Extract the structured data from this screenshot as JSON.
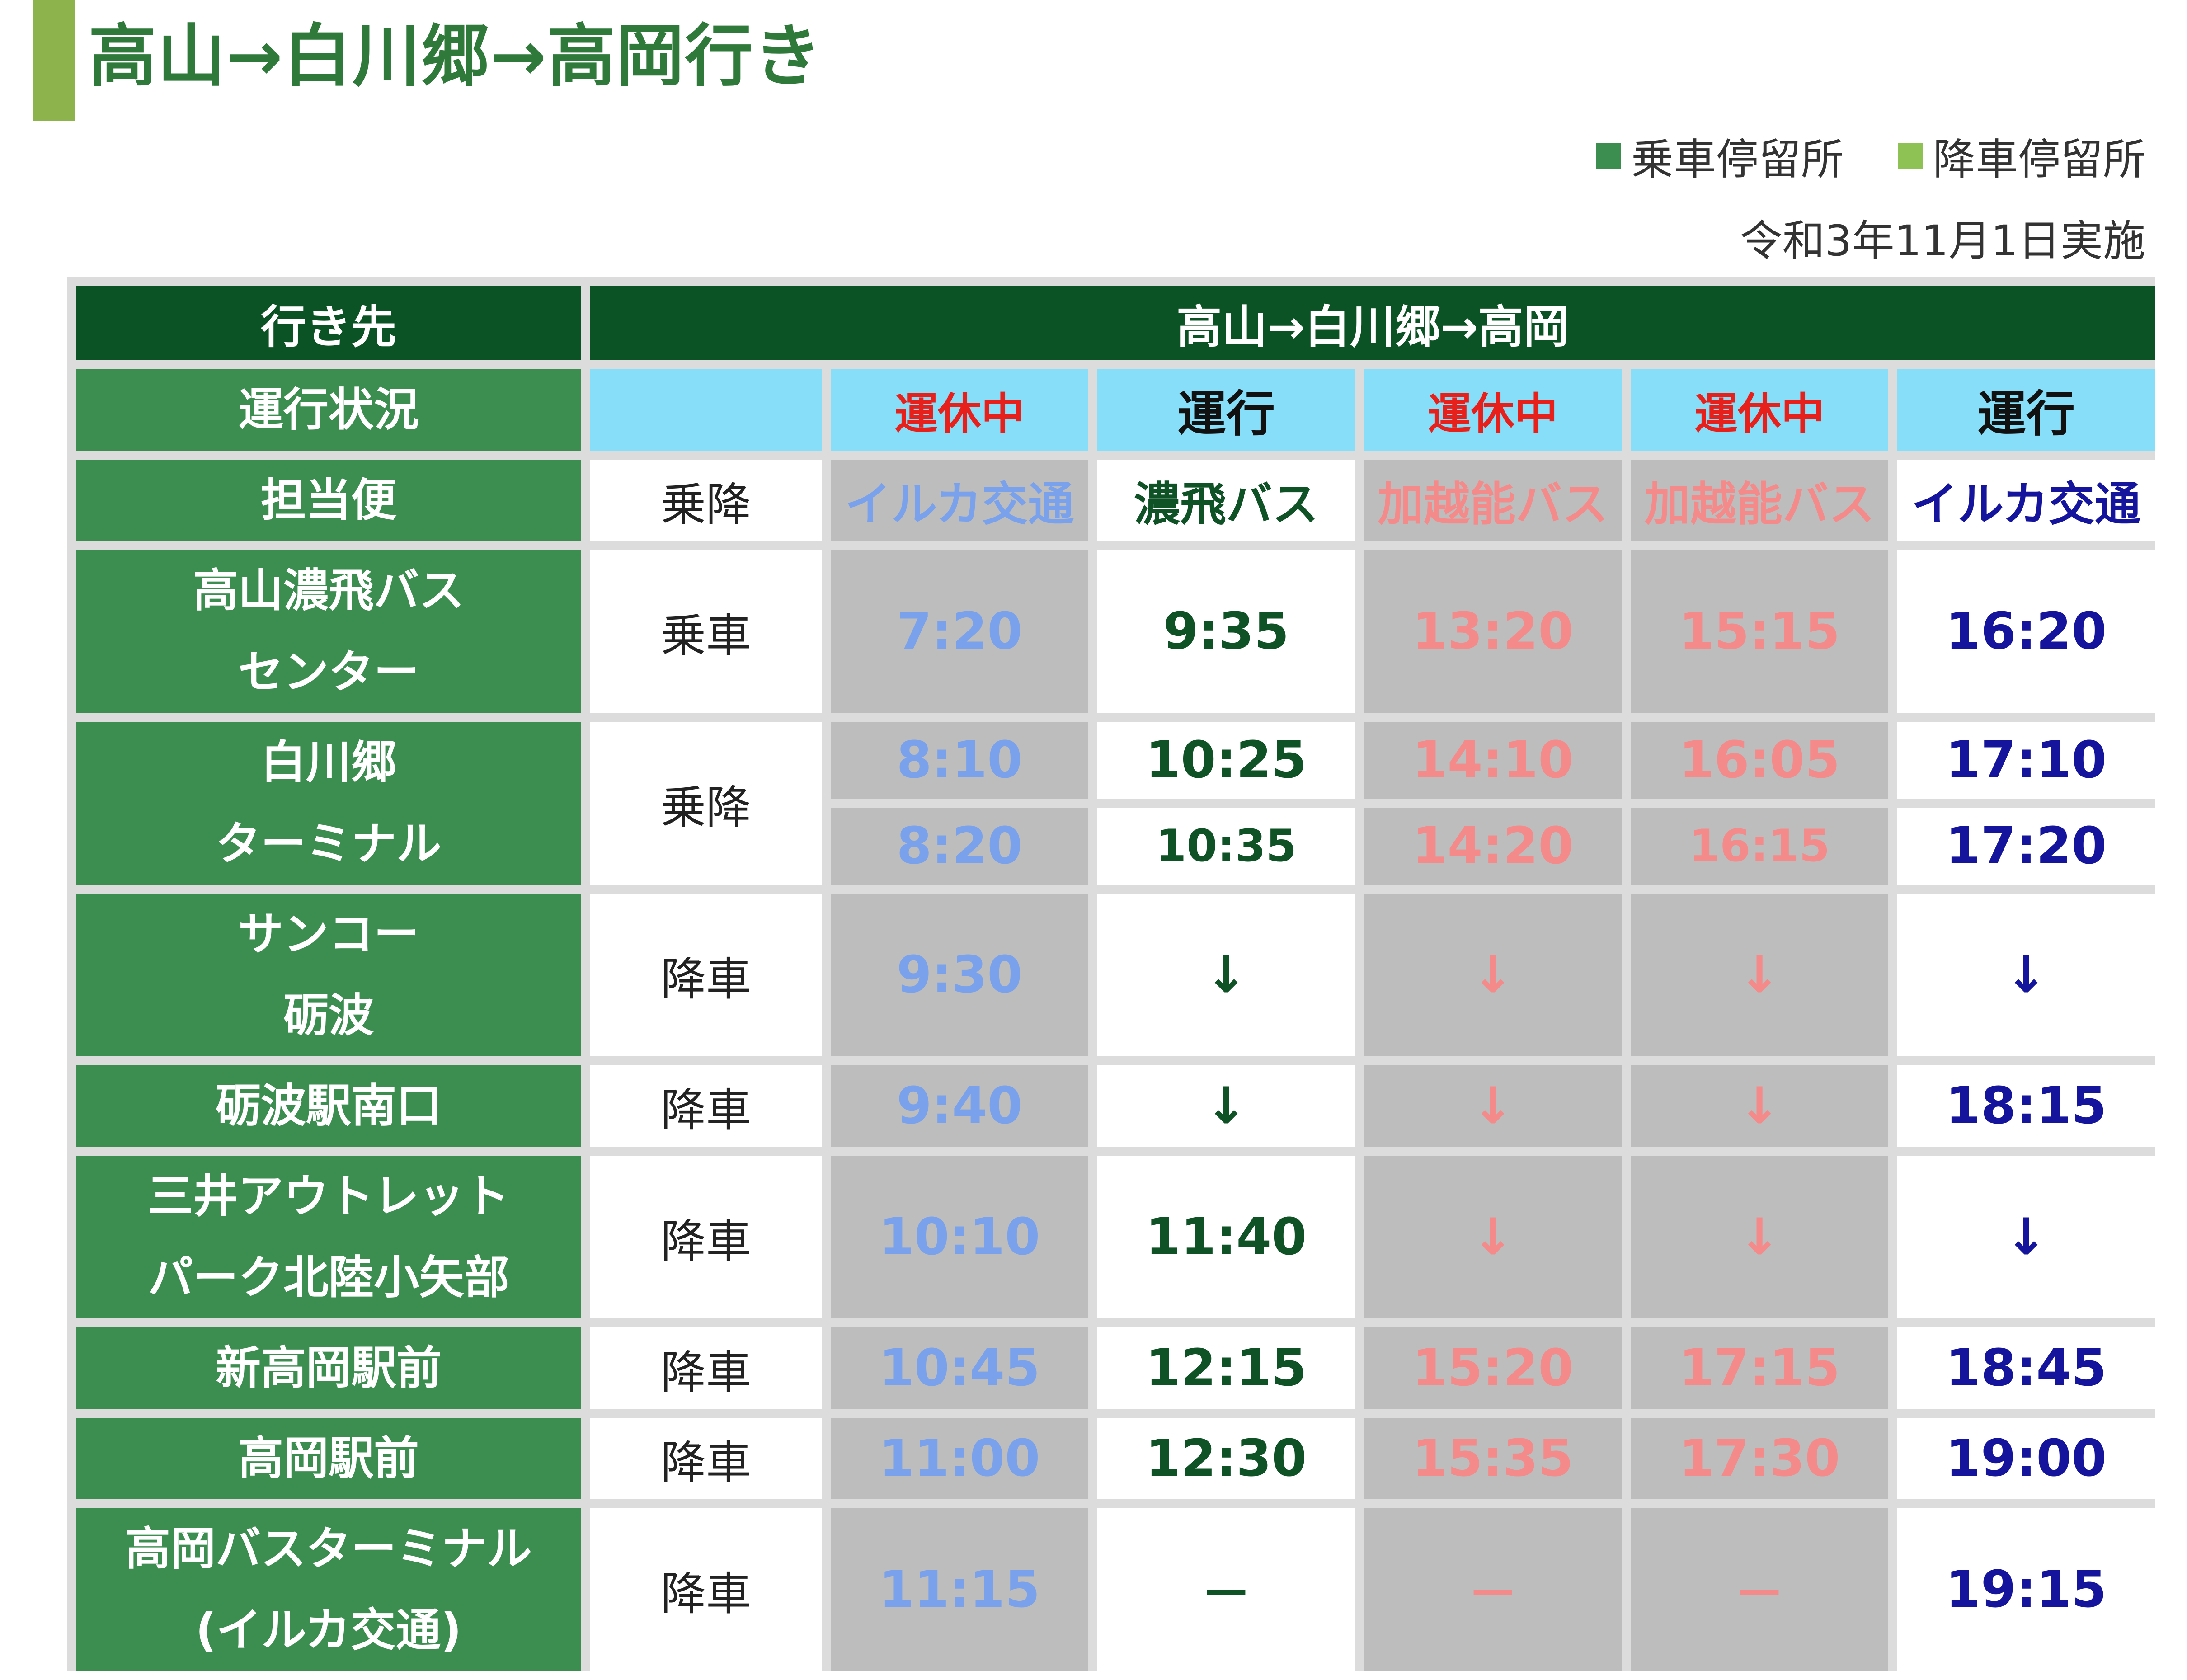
{
  "title": "高山→白川郷→高岡行き",
  "legend": {
    "board": "乗車停留所",
    "alight": "降車停留所"
  },
  "effective_date": "令和3年11月1日実施",
  "table": {
    "label_dest": "行き先",
    "route": "高山→白川郷→高岡",
    "label_status": "運行状況",
    "status": [
      "運休中",
      "運行",
      "運休中",
      "運休中",
      "運行"
    ],
    "label_operator": "担当便",
    "operator_ride_label": "乗降",
    "operators": [
      "イルカ交通",
      "濃飛バス",
      "加越能バス",
      "加越能バス",
      "イルカ交通"
    ],
    "stops": [
      {
        "name1": "高山濃飛バス",
        "name2": "センター",
        "ride": "乗車",
        "times": [
          "7:20",
          "9:35",
          "13:20",
          "15:15",
          "16:20"
        ]
      },
      {
        "name1": "白川郷",
        "name2": "ターミナル",
        "ride": "乗降",
        "times_arr": [
          "8:10",
          "10:25",
          "14:10",
          "16:05",
          "17:10"
        ],
        "times_dep": [
          "8:20",
          "10:35",
          "14:20",
          "16:15",
          "17:20"
        ]
      },
      {
        "name1": "サンコー",
        "name2": "砺波",
        "ride": "降車",
        "times": [
          "9:30",
          "↓",
          "↓",
          "↓",
          "↓"
        ]
      },
      {
        "name1": "砺波駅南口",
        "ride": "降車",
        "times": [
          "9:40",
          "↓",
          "↓",
          "↓",
          "18:15"
        ]
      },
      {
        "name1": "三井アウトレット",
        "name2": "パーク北陸小矢部",
        "ride": "降車",
        "times": [
          "10:10",
          "11:40",
          "↓",
          "↓",
          "↓"
        ]
      },
      {
        "name1": "新高岡駅前",
        "ride": "降車",
        "times": [
          "10:45",
          "12:15",
          "15:20",
          "17:15",
          "18:45"
        ]
      },
      {
        "name1": "高岡駅前",
        "ride": "降車",
        "times": [
          "11:00",
          "12:30",
          "15:35",
          "17:30",
          "19:00"
        ]
      },
      {
        "name1": "高岡バスターミナル",
        "name2": "(イルカ交通)",
        "ride": "降車",
        "times": [
          "11:15",
          "－",
          "－",
          "－",
          "19:15"
        ]
      }
    ]
  }
}
